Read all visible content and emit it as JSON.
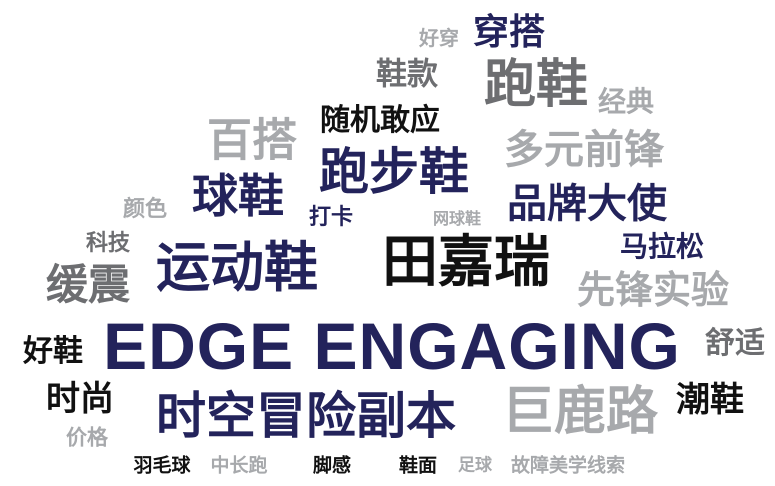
{
  "colors": {
    "navy": "#23235b",
    "black": "#111111",
    "dark_gray": "#6d6e71",
    "light_gray": "#a7a9ac"
  },
  "words": [
    {
      "text": "好穿",
      "color": "light_gray"
    },
    {
      "text": "穿搭",
      "color": "navy"
    },
    {
      "text": "鞋款",
      "color": "dark_gray"
    },
    {
      "text": "跑鞋",
      "color": "dark_gray"
    },
    {
      "text": "经典",
      "color": "light_gray"
    },
    {
      "text": "随机敢应",
      "color": "black"
    },
    {
      "text": "百搭",
      "color": "light_gray"
    },
    {
      "text": "多元前锋",
      "color": "light_gray"
    },
    {
      "text": "跑步鞋",
      "color": "navy"
    },
    {
      "text": "球鞋",
      "color": "navy"
    },
    {
      "text": "颜色",
      "color": "light_gray"
    },
    {
      "text": "品牌大使",
      "color": "navy"
    },
    {
      "text": "打卡",
      "color": "navy"
    },
    {
      "text": "网球鞋",
      "color": "light_gray"
    },
    {
      "text": "科技",
      "color": "dark_gray"
    },
    {
      "text": "马拉松",
      "color": "navy"
    },
    {
      "text": "运动鞋",
      "color": "navy"
    },
    {
      "text": "田嘉瑞",
      "color": "black"
    },
    {
      "text": "缓震",
      "color": "dark_gray"
    },
    {
      "text": "先锋实验",
      "color": "light_gray"
    },
    {
      "text": "EDGE ENGAGING",
      "color": "navy"
    },
    {
      "text": "舒适",
      "color": "dark_gray"
    },
    {
      "text": "好鞋",
      "color": "black"
    },
    {
      "text": "时尚",
      "color": "black"
    },
    {
      "text": "潮鞋",
      "color": "black"
    },
    {
      "text": "时空冒险副本",
      "color": "navy"
    },
    {
      "text": "巨鹿路",
      "color": "light_gray"
    },
    {
      "text": "价格",
      "color": "light_gray"
    },
    {
      "text": "羽毛球",
      "color": "black"
    },
    {
      "text": "中长跑",
      "color": "light_gray"
    },
    {
      "text": "脚感",
      "color": "black"
    },
    {
      "text": "鞋面",
      "color": "black"
    },
    {
      "text": "足球",
      "color": "light_gray"
    },
    {
      "text": "故障美学线索",
      "color": "light_gray"
    }
  ]
}
